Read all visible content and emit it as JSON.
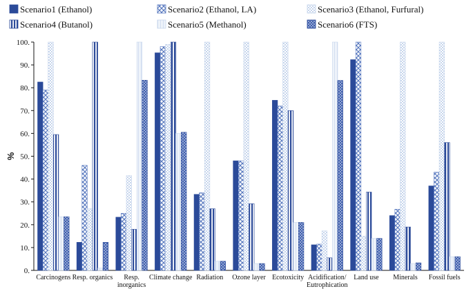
{
  "chart_data": {
    "type": "bar",
    "title": "",
    "xlabel": "",
    "ylabel": "%",
    "ylim": [
      0,
      100
    ],
    "yticks": [
      "0.",
      "10.",
      "20.",
      "30.",
      "40.",
      "50.",
      "60.",
      "70.",
      "80.",
      "90.",
      "100."
    ],
    "grid": false,
    "legend_position": "top",
    "categories": [
      [
        "Carcinogens"
      ],
      [
        "Resp. organics"
      ],
      [
        "Resp.",
        "inorganics"
      ],
      [
        "Climate change"
      ],
      [
        "Radiation"
      ],
      [
        "Ozone layer"
      ],
      [
        "Ecotoxicity"
      ],
      [
        "Acidification/",
        "Eutrophication"
      ],
      [
        "Land use"
      ],
      [
        "Minerals"
      ],
      [
        "Fossil fuels"
      ]
    ],
    "series": [
      {
        "name": "Scenario1 (Ethanol)",
        "pattern": "solid",
        "values": [
          82.5,
          12.3,
          23.3,
          95.3,
          33.3,
          48.0,
          74.5,
          11.2,
          92.3,
          24.0,
          37.0
        ]
      },
      {
        "name": "Scenario2 (Ethanol, LA)",
        "pattern": "lattice",
        "values": [
          79.0,
          46.0,
          25.0,
          98.0,
          34.0,
          48.0,
          72.0,
          11.5,
          100.0,
          26.8,
          43.0
        ]
      },
      {
        "name": "Scenario3 (Ethanol, Furfural)",
        "pattern": "light",
        "values": [
          100.0,
          27.0,
          41.5,
          99.0,
          100.0,
          100.0,
          100.0,
          17.3,
          15.0,
          100.0,
          100.0
        ]
      },
      {
        "name": "Scenario4 (Butanol)",
        "pattern": "vlines",
        "values": [
          59.5,
          100.0,
          18.0,
          100.0,
          27.0,
          29.2,
          70.0,
          5.5,
          34.3,
          19.0,
          56.0
        ]
      },
      {
        "name": "Scenario5 (Methanol)",
        "pattern": "pale",
        "values": [
          23.5,
          1.0,
          100.0,
          60.0,
          4.0,
          3.0,
          21.0,
          100.0,
          14.0,
          3.0,
          6.0
        ]
      },
      {
        "name": "Scenario6 (FTS)",
        "pattern": "dots",
        "values": [
          23.5,
          12.3,
          83.3,
          60.5,
          4.0,
          3.0,
          21.0,
          83.2,
          14.0,
          3.3,
          6.0
        ]
      }
    ],
    "colors": {
      "dark": "#2b4a99",
      "mid": "#5b7bc0",
      "light": "#c6d5ec",
      "axis": "#111111"
    }
  }
}
